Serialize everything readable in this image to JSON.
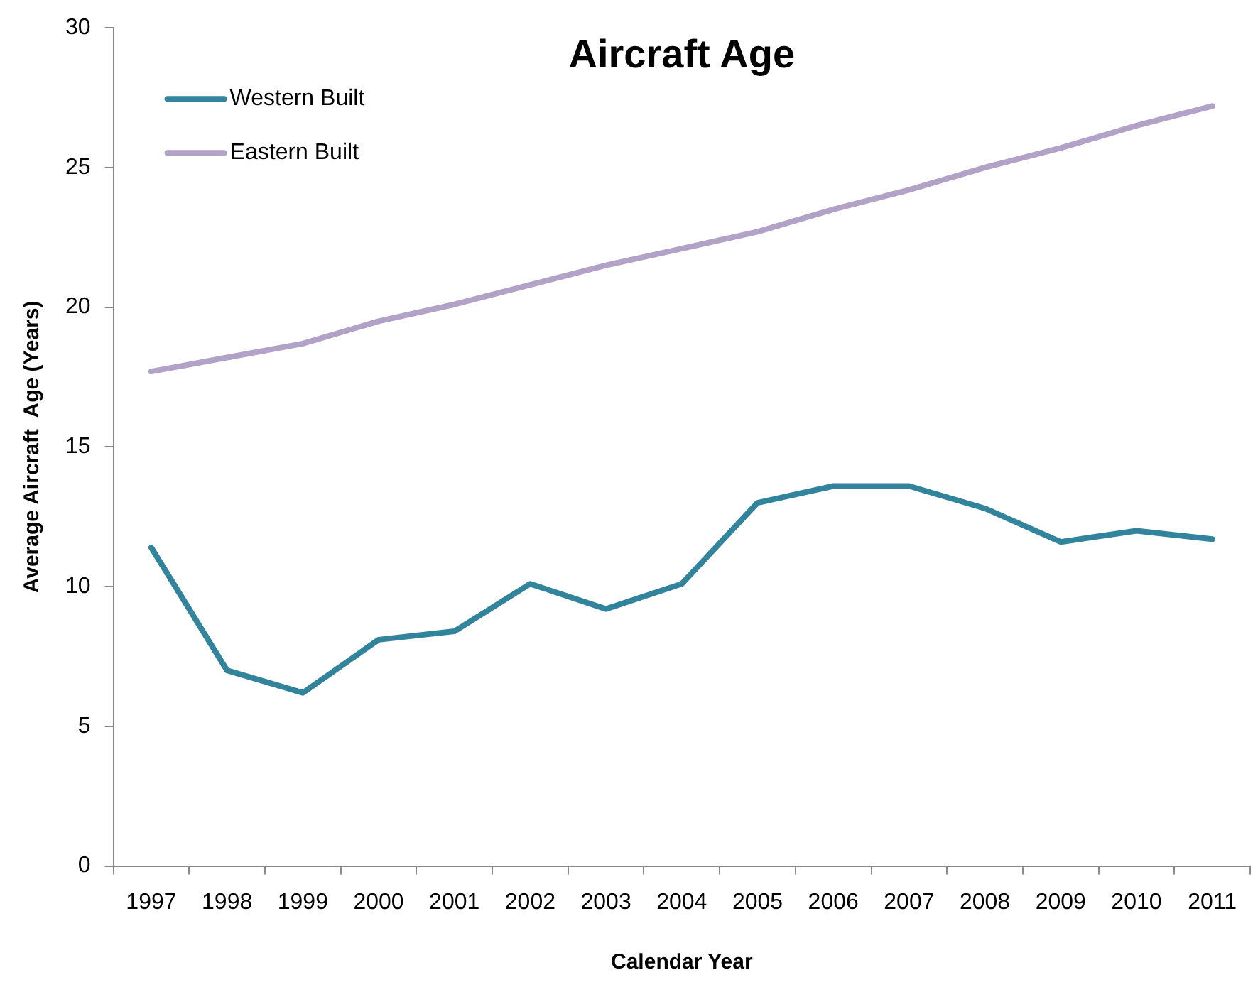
{
  "chart_data": {
    "type": "line",
    "title": "Aircraft Age",
    "xlabel": "Calendar Year",
    "ylabel": "Average Aircraft  Age (Years)",
    "categories": [
      "1997",
      "1998",
      "1999",
      "2000",
      "2001",
      "2002",
      "2003",
      "2004",
      "2005",
      "2006",
      "2007",
      "2008",
      "2009",
      "2010",
      "2011"
    ],
    "series": [
      {
        "name": "Western Built",
        "color": "#31849b",
        "values": [
          11.4,
          7.0,
          6.2,
          8.1,
          8.4,
          10.1,
          9.2,
          10.1,
          13.0,
          13.6,
          13.6,
          12.8,
          11.6,
          12.0,
          11.7
        ]
      },
      {
        "name": "Eastern Built",
        "color": "#b3a2c7",
        "values": [
          17.7,
          18.2,
          18.7,
          19.5,
          20.1,
          20.8,
          21.5,
          22.1,
          22.7,
          23.5,
          24.2,
          25.0,
          25.7,
          26.5,
          27.2
        ]
      }
    ],
    "ylim": [
      0,
      30
    ],
    "yticks": [
      0,
      5,
      10,
      15,
      20,
      25,
      30
    ],
    "grid": false,
    "legend": "top left",
    "marker": "none",
    "line_style": "solid"
  }
}
